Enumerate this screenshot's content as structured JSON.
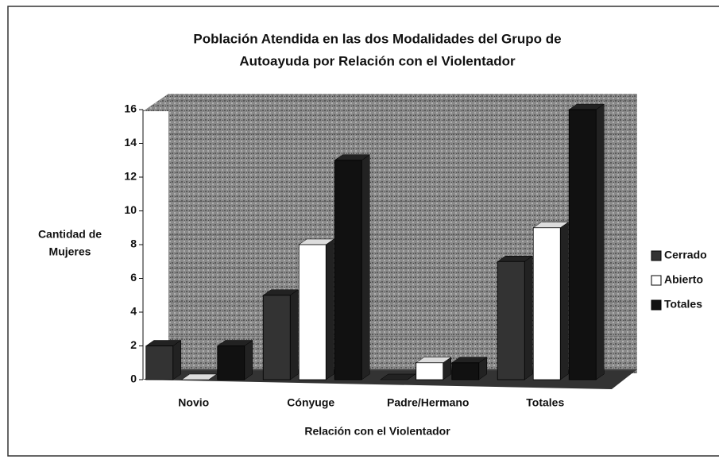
{
  "chart_data": {
    "type": "bar",
    "title": [
      "Población Atendida en las dos Modalidades del Grupo de",
      "Autoayuda por Relación con el Violentador"
    ],
    "y_axis_label": [
      "Cantidad de",
      "Mujeres"
    ],
    "x_axis_label": "Relación con el Violentador",
    "categories": [
      "Novio",
      "Cónyuge",
      "Padre/Hermano",
      "Totales"
    ],
    "series": [
      {
        "name": "Cerrado",
        "color": "#333333",
        "values": [
          2,
          5,
          0,
          7
        ]
      },
      {
        "name": "Abierto",
        "color": "#ffffff",
        "values": [
          0,
          8,
          1,
          9
        ]
      },
      {
        "name": "Totales",
        "color": "#111111",
        "values": [
          2,
          13,
          1,
          16
        ]
      }
    ],
    "ylim": [
      0,
      16
    ],
    "yticks": [
      0,
      2,
      4,
      6,
      8,
      10,
      12,
      14,
      16
    ],
    "grid": true,
    "legend": "right"
  }
}
